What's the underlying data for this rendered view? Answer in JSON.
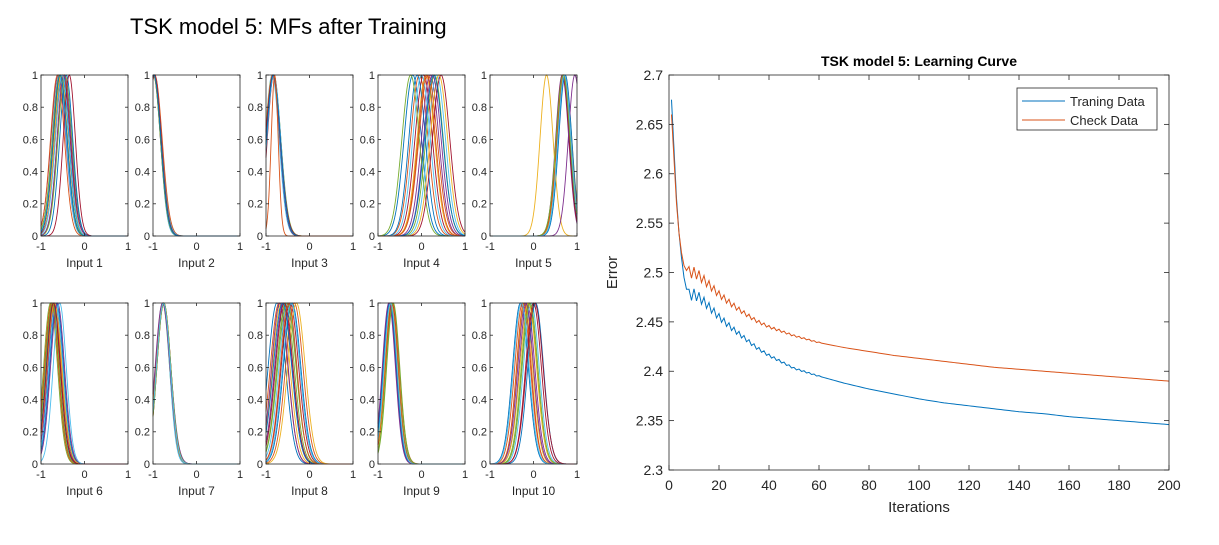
{
  "figure_title": "TSK model 5: MFs after Training",
  "chart_data": [
    {
      "type": "line",
      "panel": "Input 1",
      "xlabel": "Input 1",
      "xlim": [
        -1,
        1
      ],
      "ylim": [
        0,
        1
      ],
      "xticks": [
        "-1",
        "0",
        "1"
      ],
      "yticks": [
        "0",
        "0.2",
        "0.4",
        "0.6",
        "0.8",
        "1"
      ],
      "series": [
        {
          "center": -0.52,
          "sigma": 0.16
        },
        {
          "center": -0.55,
          "sigma": 0.16
        },
        {
          "center": -0.48,
          "sigma": 0.15
        },
        {
          "center": -0.6,
          "sigma": 0.17
        },
        {
          "center": -0.45,
          "sigma": 0.16
        },
        {
          "center": -0.58,
          "sigma": 0.16
        },
        {
          "center": -0.5,
          "sigma": 0.17
        },
        {
          "center": -0.42,
          "sigma": 0.15
        },
        {
          "center": -0.62,
          "sigma": 0.16
        },
        {
          "center": -0.54,
          "sigma": 0.15
        },
        {
          "center": -0.47,
          "sigma": 0.16
        },
        {
          "center": -0.57,
          "sigma": 0.17
        },
        {
          "center": -0.51,
          "sigma": 0.16
        },
        {
          "center": -0.35,
          "sigma": 0.14
        },
        {
          "center": -0.56,
          "sigma": 0.16
        }
      ]
    },
    {
      "type": "line",
      "panel": "Input 2",
      "xlabel": "Input 2",
      "xlim": [
        -1,
        1
      ],
      "ylim": [
        0,
        1
      ],
      "xticks": [
        "-1",
        "0",
        "1"
      ],
      "yticks": [
        "0",
        "0.2",
        "0.4",
        "0.6",
        "0.8",
        "1"
      ],
      "series": [
        {
          "center": -0.97,
          "sigma": 0.16
        },
        {
          "center": -0.98,
          "sigma": 0.16
        },
        {
          "center": -0.99,
          "sigma": 0.17
        },
        {
          "center": -0.96,
          "sigma": 0.16
        },
        {
          "center": -0.97,
          "sigma": 0.17
        },
        {
          "center": -0.98,
          "sigma": 0.15
        },
        {
          "center": -0.99,
          "sigma": 0.16
        },
        {
          "center": -0.97,
          "sigma": 0.16
        },
        {
          "center": -0.96,
          "sigma": 0.17
        },
        {
          "center": -0.98,
          "sigma": 0.16
        },
        {
          "center": -0.97,
          "sigma": 0.16
        },
        {
          "center": -0.99,
          "sigma": 0.16
        },
        {
          "center": -0.98,
          "sigma": 0.17
        },
        {
          "center": -0.97,
          "sigma": 0.16
        },
        {
          "center": -0.98,
          "sigma": 0.16
        }
      ]
    },
    {
      "type": "line",
      "panel": "Input 3",
      "xlabel": "Input 3",
      "xlim": [
        -1,
        1
      ],
      "ylim": [
        0,
        1
      ],
      "xticks": [
        "-1",
        "0",
        "1"
      ],
      "yticks": [
        "0",
        "0.2",
        "0.4",
        "0.6",
        "0.8",
        "1"
      ],
      "series": [
        {
          "center": -0.83,
          "sigma": 0.16
        },
        {
          "center": -0.84,
          "sigma": 0.17
        },
        {
          "center": -0.82,
          "sigma": 0.16
        },
        {
          "center": -0.85,
          "sigma": 0.16
        },
        {
          "center": -0.83,
          "sigma": 0.17
        },
        {
          "center": -0.86,
          "sigma": 0.16
        },
        {
          "center": -0.82,
          "sigma": 0.15
        },
        {
          "center": -0.84,
          "sigma": 0.16
        },
        {
          "center": -0.83,
          "sigma": 0.16
        },
        {
          "center": -0.85,
          "sigma": 0.17
        },
        {
          "center": -0.84,
          "sigma": 0.16
        },
        {
          "center": -0.83,
          "sigma": 0.16
        },
        {
          "center": -0.82,
          "sigma": 0.16
        },
        {
          "center": -0.84,
          "sigma": 0.17
        },
        {
          "center": -0.83,
          "sigma": 0.16
        },
        {
          "center": -0.8,
          "sigma": 0.08
        }
      ]
    },
    {
      "type": "line",
      "panel": "Input 4",
      "xlabel": "Input 4",
      "xlim": [
        -1,
        1
      ],
      "ylim": [
        0,
        1
      ],
      "xticks": [
        "-1",
        "0",
        "1"
      ],
      "yticks": [
        "0",
        "0.2",
        "0.4",
        "0.6",
        "0.8",
        "1"
      ],
      "series": [
        {
          "center": -0.2,
          "sigma": 0.2
        },
        {
          "center": -0.05,
          "sigma": 0.2
        },
        {
          "center": 0.1,
          "sigma": 0.2
        },
        {
          "center": 0.2,
          "sigma": 0.2
        },
        {
          "center": 0.3,
          "sigma": 0.2
        },
        {
          "center": 0.35,
          "sigma": 0.2
        },
        {
          "center": 0.05,
          "sigma": 0.2
        },
        {
          "center": -0.1,
          "sigma": 0.19
        },
        {
          "center": 0.15,
          "sigma": 0.21
        },
        {
          "center": 0.4,
          "sigma": 0.2
        },
        {
          "center": 0.25,
          "sigma": 0.2
        },
        {
          "center": -0.25,
          "sigma": 0.2
        },
        {
          "center": 0.0,
          "sigma": 0.2
        },
        {
          "center": 0.45,
          "sigma": 0.2
        },
        {
          "center": 0.28,
          "sigma": 0.21
        },
        {
          "center": 0.12,
          "sigma": 0.2
        }
      ]
    },
    {
      "type": "line",
      "panel": "Input 5",
      "xlabel": "Input 5",
      "xlim": [
        -1,
        1
      ],
      "ylim": [
        0,
        1
      ],
      "xticks": [
        "-1",
        "0",
        "1"
      ],
      "yticks": [
        "0",
        "0.2",
        "0.4",
        "0.6",
        "0.8",
        "1"
      ],
      "series": [
        {
          "center": 0.68,
          "sigma": 0.15
        },
        {
          "center": 0.7,
          "sigma": 0.15
        },
        {
          "center": 0.72,
          "sigma": 0.16
        },
        {
          "center": 0.66,
          "sigma": 0.15
        },
        {
          "center": 0.69,
          "sigma": 0.16
        },
        {
          "center": 0.71,
          "sigma": 0.15
        },
        {
          "center": 0.67,
          "sigma": 0.15
        },
        {
          "center": 0.73,
          "sigma": 0.15
        },
        {
          "center": 0.7,
          "sigma": 0.16
        },
        {
          "center": 0.3,
          "sigma": 0.15
        },
        {
          "center": 0.95,
          "sigma": 0.15
        },
        {
          "center": 0.68,
          "sigma": 0.16
        },
        {
          "center": 0.71,
          "sigma": 0.15
        }
      ]
    },
    {
      "type": "line",
      "panel": "Input 6",
      "xlabel": "Input 6",
      "xlim": [
        -1,
        1
      ],
      "ylim": [
        0,
        1
      ],
      "xticks": [
        "-1",
        "0",
        "1"
      ],
      "yticks": [
        "0",
        "0.2",
        "0.4",
        "0.6",
        "0.8",
        "1"
      ],
      "series": [
        {
          "center": -0.72,
          "sigma": 0.16
        },
        {
          "center": -0.75,
          "sigma": 0.16
        },
        {
          "center": -0.7,
          "sigma": 0.16
        },
        {
          "center": -0.68,
          "sigma": 0.16
        },
        {
          "center": -0.78,
          "sigma": 0.16
        },
        {
          "center": -0.66,
          "sigma": 0.16
        },
        {
          "center": -0.73,
          "sigma": 0.17
        },
        {
          "center": -0.64,
          "sigma": 0.16
        },
        {
          "center": -0.76,
          "sigma": 0.16
        },
        {
          "center": -0.69,
          "sigma": 0.17
        },
        {
          "center": -0.62,
          "sigma": 0.16
        },
        {
          "center": -0.74,
          "sigma": 0.16
        },
        {
          "center": -0.57,
          "sigma": 0.15
        },
        {
          "center": -0.71,
          "sigma": 0.16
        }
      ]
    },
    {
      "type": "line",
      "panel": "Input 7",
      "xlabel": "Input 7",
      "xlim": [
        -1,
        1
      ],
      "ylim": [
        0,
        1
      ],
      "xticks": [
        "-1",
        "0",
        "1"
      ],
      "yticks": [
        "0",
        "0.2",
        "0.4",
        "0.6",
        "0.8",
        "1"
      ],
      "series": [
        {
          "center": -0.76,
          "sigma": 0.16
        },
        {
          "center": -0.77,
          "sigma": 0.16
        },
        {
          "center": -0.75,
          "sigma": 0.16
        },
        {
          "center": -0.76,
          "sigma": 0.17
        },
        {
          "center": -0.78,
          "sigma": 0.16
        },
        {
          "center": -0.77,
          "sigma": 0.15
        },
        {
          "center": -0.75,
          "sigma": 0.16
        },
        {
          "center": -0.76,
          "sigma": 0.16
        },
        {
          "center": -0.77,
          "sigma": 0.16
        },
        {
          "center": -0.76,
          "sigma": 0.16
        },
        {
          "center": -0.78,
          "sigma": 0.17
        },
        {
          "center": -0.75,
          "sigma": 0.16
        },
        {
          "center": -0.76,
          "sigma": 0.16
        }
      ]
    },
    {
      "type": "line",
      "panel": "Input 8",
      "xlabel": "Input 8",
      "xlim": [
        -1,
        1
      ],
      "ylim": [
        0,
        1
      ],
      "xticks": [
        "-1",
        "0",
        "1"
      ],
      "yticks": [
        "0",
        "0.2",
        "0.4",
        "0.6",
        "0.8",
        "1"
      ],
      "series": [
        {
          "center": -0.75,
          "sigma": 0.2
        },
        {
          "center": -0.7,
          "sigma": 0.2
        },
        {
          "center": -0.65,
          "sigma": 0.2
        },
        {
          "center": -0.6,
          "sigma": 0.2
        },
        {
          "center": -0.55,
          "sigma": 0.2
        },
        {
          "center": -0.5,
          "sigma": 0.2
        },
        {
          "center": -0.45,
          "sigma": 0.2
        },
        {
          "center": -0.4,
          "sigma": 0.2
        },
        {
          "center": -0.35,
          "sigma": 0.2
        },
        {
          "center": -0.3,
          "sigma": 0.2
        },
        {
          "center": -0.68,
          "sigma": 0.19
        },
        {
          "center": -0.52,
          "sigma": 0.21
        },
        {
          "center": -0.42,
          "sigma": 0.2
        },
        {
          "center": -0.58,
          "sigma": 0.2
        },
        {
          "center": -0.62,
          "sigma": 0.21
        },
        {
          "center": -0.48,
          "sigma": 0.19
        }
      ]
    },
    {
      "type": "line",
      "panel": "Input 9",
      "xlabel": "Input 9",
      "xlim": [
        -1,
        1
      ],
      "ylim": [
        0,
        1
      ],
      "xticks": [
        "-1",
        "0",
        "1"
      ],
      "yticks": [
        "0",
        "0.2",
        "0.4",
        "0.6",
        "0.8",
        "1"
      ],
      "series": [
        {
          "center": -0.7,
          "sigma": 0.15
        },
        {
          "center": -0.72,
          "sigma": 0.15
        },
        {
          "center": -0.68,
          "sigma": 0.15
        },
        {
          "center": -0.74,
          "sigma": 0.15
        },
        {
          "center": -0.66,
          "sigma": 0.15
        },
        {
          "center": -0.71,
          "sigma": 0.16
        },
        {
          "center": -0.69,
          "sigma": 0.15
        },
        {
          "center": -0.73,
          "sigma": 0.15
        },
        {
          "center": -0.67,
          "sigma": 0.16
        },
        {
          "center": -0.7,
          "sigma": 0.15
        },
        {
          "center": -0.75,
          "sigma": 0.15
        },
        {
          "center": -0.65,
          "sigma": 0.15
        },
        {
          "center": -0.71,
          "sigma": 0.15
        }
      ]
    },
    {
      "type": "line",
      "panel": "Input 10",
      "xlabel": "Input 10",
      "xlim": [
        -1,
        1
      ],
      "ylim": [
        0,
        1
      ],
      "xticks": [
        "-1",
        "0",
        "1"
      ],
      "yticks": [
        "0",
        "0.2",
        "0.4",
        "0.6",
        "0.8",
        "1"
      ],
      "series": [
        {
          "center": -0.3,
          "sigma": 0.18
        },
        {
          "center": -0.25,
          "sigma": 0.18
        },
        {
          "center": -0.2,
          "sigma": 0.18
        },
        {
          "center": -0.15,
          "sigma": 0.18
        },
        {
          "center": -0.1,
          "sigma": 0.18
        },
        {
          "center": -0.05,
          "sigma": 0.18
        },
        {
          "center": 0.0,
          "sigma": 0.18
        },
        {
          "center": 0.05,
          "sigma": 0.18
        },
        {
          "center": -0.22,
          "sigma": 0.17
        },
        {
          "center": -0.12,
          "sigma": 0.19
        },
        {
          "center": -0.18,
          "sigma": 0.18
        },
        {
          "center": -0.08,
          "sigma": 0.18
        },
        {
          "center": -0.28,
          "sigma": 0.18
        },
        {
          "center": 0.03,
          "sigma": 0.19
        }
      ]
    },
    {
      "type": "line",
      "title": "TSK model 5: Learning Curve",
      "xlabel": "Iterations",
      "ylabel": "Error",
      "xlim": [
        0,
        200
      ],
      "ylim": [
        2.3,
        2.7
      ],
      "xticks": [
        "0",
        "20",
        "40",
        "60",
        "80",
        "100",
        "120",
        "140",
        "160",
        "180",
        "200"
      ],
      "yticks": [
        "2.3",
        "2.35",
        "2.4",
        "2.45",
        "2.5",
        "2.55",
        "2.6",
        "2.65",
        "2.7"
      ],
      "legend_position": "top-right",
      "series": [
        {
          "name": "Traning Data",
          "color": "#0072BD",
          "x": [
            1,
            2,
            3,
            4,
            5,
            6,
            7,
            8,
            10,
            12,
            15,
            20,
            25,
            30,
            35,
            40,
            50,
            60,
            70,
            80,
            90,
            100,
            110,
            120,
            130,
            140,
            150,
            160,
            170,
            180,
            190,
            200
          ],
          "y": [
            2.675,
            2.625,
            2.575,
            2.54,
            2.515,
            2.495,
            2.483,
            2.477,
            2.478,
            2.475,
            2.468,
            2.455,
            2.444,
            2.434,
            2.424,
            2.416,
            2.403,
            2.395,
            2.388,
            2.382,
            2.377,
            2.372,
            2.368,
            2.365,
            2.362,
            2.359,
            2.357,
            2.354,
            2.352,
            2.35,
            2.348,
            2.346
          ]
        },
        {
          "name": "Check Data",
          "color": "#D95319",
          "x": [
            1,
            2,
            3,
            4,
            5,
            6,
            7,
            8,
            10,
            12,
            15,
            20,
            25,
            30,
            35,
            40,
            50,
            60,
            70,
            80,
            90,
            100,
            110,
            120,
            130,
            140,
            150,
            160,
            170,
            180,
            190,
            200
          ],
          "y": [
            2.66,
            2.615,
            2.57,
            2.54,
            2.52,
            2.507,
            2.502,
            2.5,
            2.5,
            2.497,
            2.49,
            2.478,
            2.468,
            2.459,
            2.451,
            2.445,
            2.436,
            2.429,
            2.424,
            2.42,
            2.416,
            2.413,
            2.41,
            2.407,
            2.404,
            2.402,
            2.4,
            2.398,
            2.396,
            2.394,
            2.392,
            2.39
          ]
        }
      ]
    }
  ]
}
